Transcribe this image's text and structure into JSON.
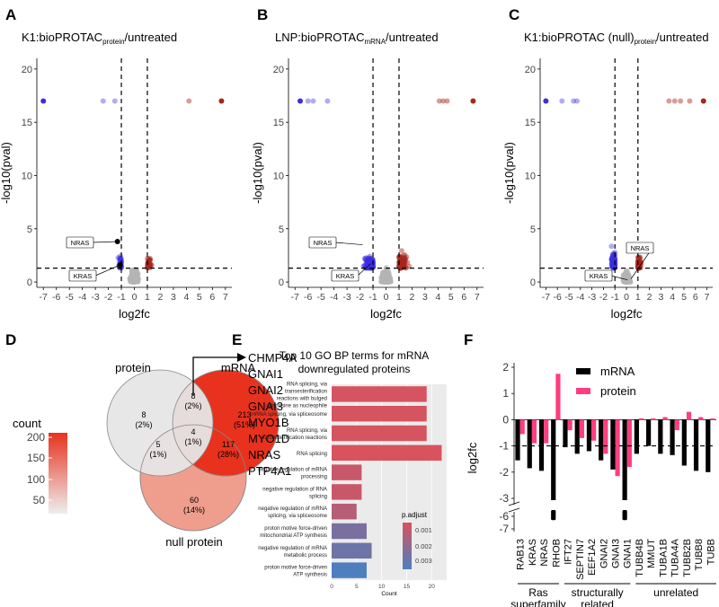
{
  "colors": {
    "down": "#3b2fe0",
    "up": "#a8261a",
    "ns": "#b4b4b4",
    "mrna_bar": "#000000",
    "protein_bar": "#ff3d7f",
    "venn_protein": "#e6e6e6",
    "venn_mrna": "#e8321e",
    "venn_null": "#ef9e8e",
    "go_low": "#d9535d",
    "go_high": "#4a7fc0"
  },
  "chart_data": [
    {
      "panel": "A",
      "type": "scatter",
      "title_main": "K1:bioPROTAC",
      "title_sub": "protein",
      "title_tail": "/untreated",
      "xlabel": "log2fc",
      "ylabel": "-log10(pval)",
      "xlim": [
        -7.5,
        7.5
      ],
      "ylim": [
        -0.5,
        21
      ],
      "xticks": [
        "-7",
        "-6",
        "-5",
        "-4",
        "-3",
        "-2",
        "-1",
        "0",
        "1",
        "2",
        "3",
        "4",
        "5",
        "6",
        "7"
      ],
      "yticks": [
        "0",
        "5",
        "10",
        "15",
        "20"
      ],
      "vlines": [
        -1,
        1
      ],
      "hline": 1.3,
      "labels": [
        {
          "text": "NRAS",
          "x": -1.3,
          "y": 3.8
        },
        {
          "text": "KRAS",
          "x": -1.1,
          "y": 1.6
        }
      ],
      "highlight_points": [
        {
          "x": -7,
          "y": 17,
          "group": "down_sat"
        },
        {
          "x": -2.4,
          "y": 17,
          "group": "down"
        },
        {
          "x": -1.5,
          "y": 17,
          "group": "down"
        },
        {
          "x": 4.2,
          "y": 17,
          "group": "up"
        },
        {
          "x": 6.7,
          "y": 17,
          "group": "up_sat"
        },
        {
          "x": -1.3,
          "y": 3.8,
          "group": "marked"
        },
        {
          "x": -1.1,
          "y": 1.6,
          "group": "marked"
        }
      ]
    },
    {
      "panel": "B",
      "type": "scatter",
      "title_main": "LNP:bioPROTAC",
      "title_sub": "mRNA",
      "title_tail": "/untreated",
      "xlabel": "log2fc",
      "ylabel": "-log10(pval)",
      "xlim": [
        -7.5,
        7.5
      ],
      "ylim": [
        -0.5,
        21
      ],
      "xticks": [
        "-7",
        "-6",
        "-5",
        "-4",
        "-3",
        "-2",
        "-1",
        "0",
        "1",
        "2",
        "3",
        "4",
        "5",
        "6",
        "7"
      ],
      "yticks": [
        "0",
        "5",
        "10",
        "15",
        "20"
      ],
      "vlines": [
        -1,
        1
      ],
      "hline": 1.3,
      "labels": [
        {
          "text": "NRAS",
          "x": -1.8,
          "y": 3.5
        },
        {
          "text": "KRAS",
          "x": -1.2,
          "y": 1.7
        }
      ],
      "highlight_points": [
        {
          "x": -6.6,
          "y": 17,
          "group": "down_sat"
        },
        {
          "x": -6.0,
          "y": 17,
          "group": "down"
        },
        {
          "x": -5.6,
          "y": 17,
          "group": "down"
        },
        {
          "x": -4.5,
          "y": 17,
          "group": "down"
        },
        {
          "x": 4.1,
          "y": 17,
          "group": "up"
        },
        {
          "x": 4.4,
          "y": 17,
          "group": "up"
        },
        {
          "x": 4.7,
          "y": 17,
          "group": "up"
        },
        {
          "x": 6.7,
          "y": 17,
          "group": "up_sat"
        }
      ]
    },
    {
      "panel": "C",
      "type": "scatter",
      "title_main": "K1:bioPROTAC (null)",
      "title_sub": "protein",
      "title_tail": "/untreated",
      "xlabel": "log2fc",
      "ylabel": "-log10(pval)",
      "xlim": [
        -7.5,
        7.5
      ],
      "ylim": [
        -0.5,
        21
      ],
      "xticks": [
        "-7",
        "-6",
        "-5",
        "-4",
        "-3",
        "-2",
        "-1",
        "0",
        "1",
        "2",
        "3",
        "4",
        "5",
        "6",
        "7"
      ],
      "yticks": [
        "0",
        "5",
        "10",
        "15",
        "20"
      ],
      "vlines": [
        -1,
        1
      ],
      "hline": 1.3,
      "labels": [
        {
          "text": "NRAS",
          "x": 0.4,
          "y": 0.3
        },
        {
          "text": "KRAS",
          "x": 0.1,
          "y": 0.2
        }
      ],
      "highlight_points": [
        {
          "x": -7,
          "y": 17,
          "group": "down_sat"
        },
        {
          "x": -5.6,
          "y": 17,
          "group": "down"
        },
        {
          "x": -4.6,
          "y": 17,
          "group": "down"
        },
        {
          "x": -4.3,
          "y": 17,
          "group": "down"
        },
        {
          "x": 3.7,
          "y": 17,
          "group": "up"
        },
        {
          "x": 4.2,
          "y": 17,
          "group": "up"
        },
        {
          "x": 4.7,
          "y": 17,
          "group": "up"
        },
        {
          "x": 5.5,
          "y": 17,
          "group": "up"
        },
        {
          "x": 6.7,
          "y": 17,
          "group": "up_sat"
        }
      ]
    },
    {
      "panel": "D",
      "type": "venn",
      "sets": [
        "protein",
        "mRNA",
        "null protein"
      ],
      "regions": {
        "protein_only": {
          "n": "8",
          "pct": "(2%)"
        },
        "mrna_only": {
          "n": "213",
          "pct": "(51%)"
        },
        "null_only": {
          "n": "60",
          "pct": "(14%)"
        },
        "protein_mrna": {
          "n": "8",
          "pct": "(2%)"
        },
        "protein_null": {
          "n": "5",
          "pct": "(1%)"
        },
        "mrna_null": {
          "n": "117",
          "pct": "(28%)"
        },
        "all_three": {
          "n": "4",
          "pct": "(1%)"
        }
      },
      "legend_title": "count",
      "legend_ticks": [
        "200",
        "150",
        "100",
        "50"
      ],
      "genes": [
        "CHMP4A",
        "GNAI1",
        "GNAI2",
        "GNAI3",
        "MYO1B",
        "MYO1D",
        "NRAS",
        "PTP4A1"
      ]
    },
    {
      "panel": "E",
      "type": "bar",
      "title": "Top 10 GO BP terms for mRNA downregulated proteins",
      "title_lines": [
        "Top 10 GO BP terms for mRNA",
        "downregulated proteins"
      ],
      "xlabel": "Count",
      "xlim": [
        0,
        23
      ],
      "xticks": [
        "0",
        "5",
        "10",
        "15",
        "20"
      ],
      "categories": [
        [
          "RNA splicing, via",
          "transesterification",
          "reactions with bulged",
          "adenosine as nucleophile"
        ],
        [
          "mRNA splicing, via spliceosome"
        ],
        [
          "RNA splicing, via",
          "transesterification reactions"
        ],
        [
          "RNA splicing"
        ],
        [
          "negative regulation of mRNA",
          "processing"
        ],
        [
          "negative regulation of RNA",
          "splicing"
        ],
        [
          "negative regulation of mRNA",
          "splicing, via spliceosome"
        ],
        [
          "proton motive force-driven",
          "mitochondrial ATP synthesis"
        ],
        [
          "negative regulation of mRNA",
          "metabolic process"
        ],
        [
          "proton motive force-driven",
          "ATP synthesis"
        ]
      ],
      "values": [
        19,
        19,
        19,
        22,
        6,
        6,
        5,
        7,
        8,
        7
      ],
      "p_adjust": [
        0.0002,
        0.0002,
        0.0002,
        0.0001,
        0.0005,
        0.0005,
        0.0009,
        0.0023,
        0.0026,
        0.0033
      ],
      "legend_title": "p.adjust",
      "legend_ticks": [
        "0.001",
        "0.002",
        "0.003"
      ]
    },
    {
      "panel": "F",
      "type": "bar",
      "ylabel": "log2fc",
      "legend": [
        "mRNA",
        "protein"
      ],
      "categories": [
        "RAB13",
        "KRAS",
        "NRAS",
        "RHOB",
        "IFT27",
        "SEPTIN7",
        "EEF1A2",
        "GNAI2",
        "GNAI3",
        "GNAI1",
        "TUBB4B",
        "MMUT",
        "TUBA1B",
        "TUBA4A",
        "TUBB2B",
        "TUBB8",
        "TUBB"
      ],
      "series": [
        {
          "name": "mRNA",
          "values": [
            -1.55,
            -1.85,
            -1.95,
            -6.3,
            -1.05,
            -1.3,
            -1.2,
            -1.55,
            -1.9,
            -6.3,
            -1.3,
            -1.0,
            -1.3,
            -1.35,
            -1.75,
            -1.95,
            -2.0
          ]
        },
        {
          "name": "protein",
          "values": [
            -0.55,
            -0.9,
            -0.9,
            1.75,
            -0.4,
            -0.7,
            -0.8,
            -1.3,
            -2.15,
            -1.8,
            0.05,
            0.05,
            0.1,
            -0.4,
            0.3,
            0.1,
            0.05
          ]
        }
      ],
      "yticks": [
        "2",
        "1",
        "0",
        "-1",
        "-2",
        "-3",
        "-6",
        "-7"
      ],
      "hline": -1,
      "groups": [
        {
          "label_lines": [
            "Ras",
            "superfamily"
          ]
        },
        {
          "label_lines": [
            "structurally",
            "related"
          ]
        },
        {
          "label_lines": [
            "unrelated"
          ]
        }
      ]
    }
  ],
  "panel_letters": [
    "A",
    "B",
    "C",
    "D",
    "E",
    "F"
  ]
}
